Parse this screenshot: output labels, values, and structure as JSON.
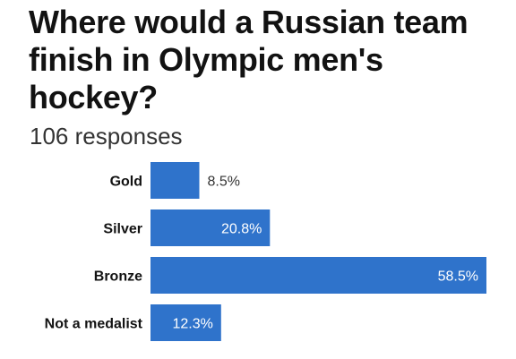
{
  "title": "Where would a Russian team finish in Olympic men's hockey?",
  "subtitle": "106 responses",
  "colors": {
    "bar": "#2f73cb",
    "label_inside": "#ffffff",
    "label_outside": "#333333"
  },
  "chart_data": {
    "type": "bar",
    "orientation": "horizontal",
    "title": "Where would a Russian team finish in Olympic men's hockey?",
    "subtitle": "106 responses",
    "categories": [
      "Gold",
      "Silver",
      "Bronze",
      "Not a medalist"
    ],
    "values": [
      8.5,
      20.8,
      58.5,
      12.3
    ],
    "value_labels": [
      "8.5%",
      "20.8%",
      "58.5%",
      "12.3%"
    ],
    "xlim": [
      0,
      58.5
    ],
    "grid": false,
    "legend": "none"
  }
}
